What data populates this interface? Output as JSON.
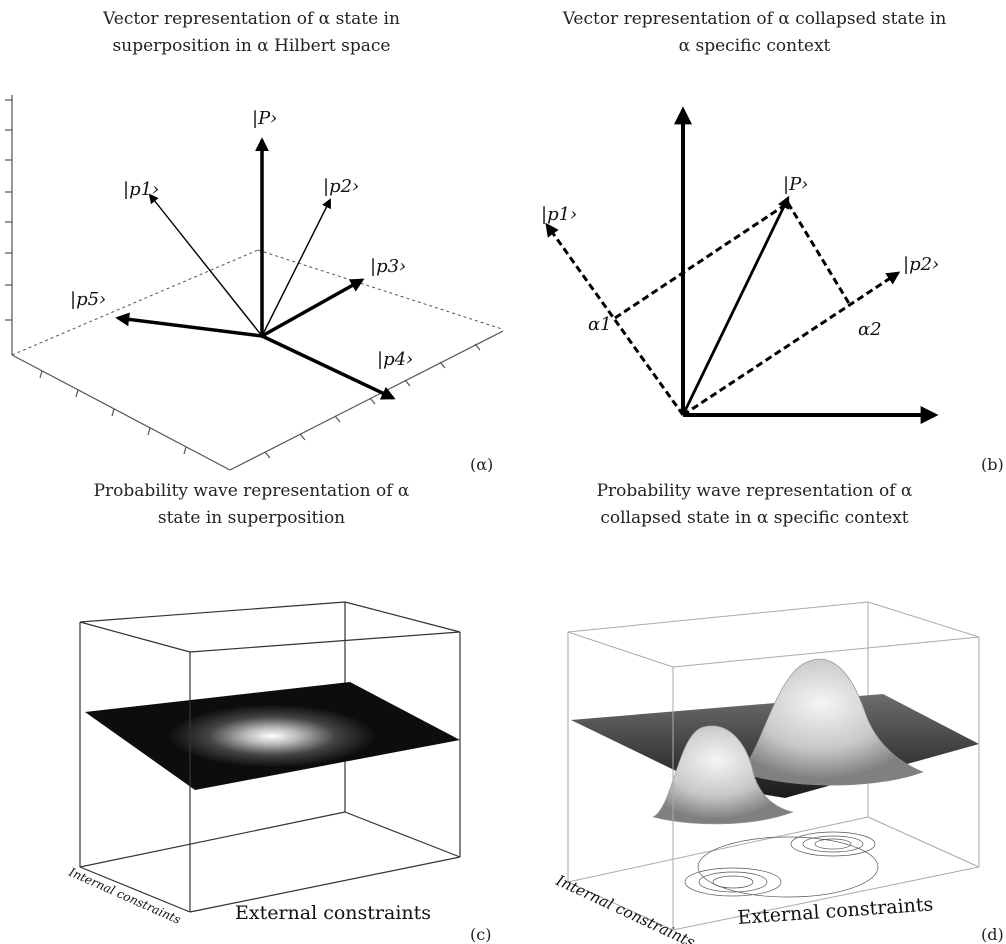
{
  "panels": {
    "a": {
      "title_line1": "Vector representation of α state in",
      "title_line2": "superposition in α Hilbert space",
      "corner": "(α)",
      "vectors": [
        "|P›",
        "|p1›",
        "|p2›",
        "|p3›",
        "|p4›",
        "|p5›"
      ]
    },
    "b": {
      "title_line1": "Vector representation of α collapsed state in",
      "title_line2": "α specific context",
      "corner": "(b)",
      "vectors": [
        "|P›",
        "|p1›",
        "|p2›"
      ],
      "coefficients": [
        "α1",
        "α2"
      ]
    },
    "c": {
      "title_line1": "Probability wave representation of α",
      "title_line2": "state in superposition",
      "corner": "(c)",
      "axis_x": "External constraints",
      "axis_y": "Internal constraints"
    },
    "d": {
      "title_line1": "Probability wave representation of α",
      "title_line2": "collapsed state in α specific context",
      "corner": "(d)",
      "axis_x": "External constraints",
      "axis_y": "Internal constraints"
    }
  }
}
